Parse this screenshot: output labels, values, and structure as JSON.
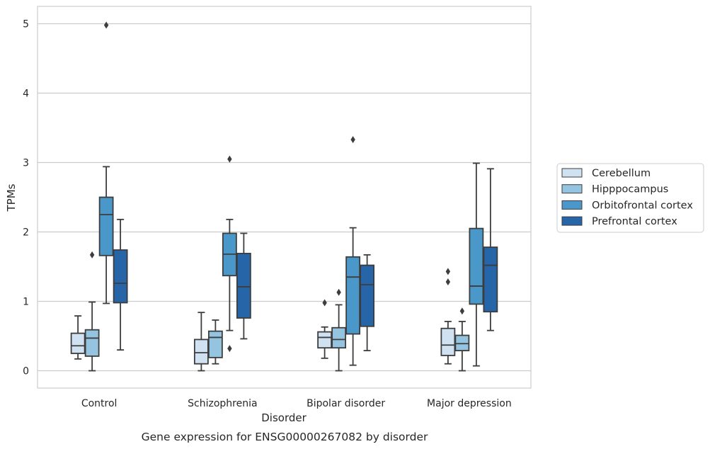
{
  "chart_data": {
    "type": "boxplot",
    "title": "",
    "caption": "Gene expression for ENSG00000267082 by disorder",
    "xlabel": "Disorder",
    "ylabel": "TPMs",
    "ylim": [
      -0.25,
      5.25
    ],
    "yticks": [
      0,
      1,
      2,
      3,
      4,
      5
    ],
    "grid": "horizontal",
    "legend_position": "right",
    "categories": [
      "Control",
      "Schizophrenia",
      "Bipolar disorder",
      "Major depression"
    ],
    "series": [
      {
        "name": "Cerebellum",
        "color": "#d0e1f2",
        "boxes": [
          {
            "whisker_low": 0.17,
            "q1": 0.25,
            "median": 0.36,
            "q3": 0.54,
            "whisker_high": 0.79,
            "outliers": []
          },
          {
            "whisker_low": 0.0,
            "q1": 0.1,
            "median": 0.26,
            "q3": 0.45,
            "whisker_high": 0.84,
            "outliers": []
          },
          {
            "whisker_low": 0.18,
            "q1": 0.33,
            "median": 0.48,
            "q3": 0.56,
            "whisker_high": 0.63,
            "outliers": [
              0.98
            ]
          },
          {
            "whisker_low": 0.1,
            "q1": 0.22,
            "median": 0.37,
            "q3": 0.61,
            "whisker_high": 0.71,
            "outliers": [
              1.28,
              1.43
            ]
          }
        ]
      },
      {
        "name": "Hipppocampus",
        "color": "#94c4df",
        "boxes": [
          {
            "whisker_low": 0.0,
            "q1": 0.21,
            "median": 0.47,
            "q3": 0.59,
            "whisker_high": 0.99,
            "outliers": [
              1.67
            ]
          },
          {
            "whisker_low": 0.1,
            "q1": 0.19,
            "median": 0.48,
            "q3": 0.57,
            "whisker_high": 0.73,
            "outliers": []
          },
          {
            "whisker_low": 0.0,
            "q1": 0.33,
            "median": 0.45,
            "q3": 0.62,
            "whisker_high": 0.95,
            "outliers": [
              1.13
            ]
          },
          {
            "whisker_low": 0.0,
            "q1": 0.29,
            "median": 0.39,
            "q3": 0.51,
            "whisker_high": 0.71,
            "outliers": [
              0.86
            ]
          }
        ]
      },
      {
        "name": "Orbitofrontal cortex",
        "color": "#4a98c9",
        "boxes": [
          {
            "whisker_low": 0.97,
            "q1": 1.66,
            "median": 2.25,
            "q3": 2.5,
            "whisker_high": 2.94,
            "outliers": [
              4.98
            ]
          },
          {
            "whisker_low": 0.58,
            "q1": 1.37,
            "median": 1.68,
            "q3": 1.98,
            "whisker_high": 2.18,
            "outliers": [
              0.32,
              3.05
            ]
          },
          {
            "whisker_low": 0.08,
            "q1": 0.53,
            "median": 1.35,
            "q3": 1.64,
            "whisker_high": 2.06,
            "outliers": [
              3.33
            ]
          },
          {
            "whisker_low": 0.07,
            "q1": 0.96,
            "median": 1.22,
            "q3": 2.05,
            "whisker_high": 2.99,
            "outliers": []
          }
        ]
      },
      {
        "name": "Prefrontal cortex",
        "color": "#2565a8",
        "boxes": [
          {
            "whisker_low": 0.3,
            "q1": 0.98,
            "median": 1.26,
            "q3": 1.74,
            "whisker_high": 2.18,
            "outliers": []
          },
          {
            "whisker_low": 0.46,
            "q1": 0.76,
            "median": 1.21,
            "q3": 1.69,
            "whisker_high": 1.98,
            "outliers": []
          },
          {
            "whisker_low": 0.29,
            "q1": 0.64,
            "median": 1.24,
            "q3": 1.52,
            "whisker_high": 1.67,
            "outliers": []
          },
          {
            "whisker_low": 0.58,
            "q1": 0.85,
            "median": 1.52,
            "q3": 1.78,
            "whisker_high": 2.91,
            "outliers": []
          }
        ]
      }
    ]
  }
}
